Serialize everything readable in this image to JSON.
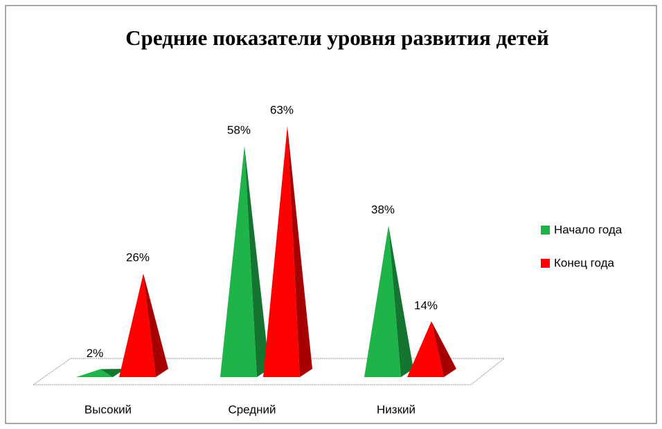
{
  "chart_data": {
    "type": "pyramid",
    "title": "Средние показатели уровня развития детей",
    "categories": [
      "Высокий",
      "Средний",
      "Низкий"
    ],
    "series": [
      {
        "name": "Начало года",
        "color": "#1fb44a",
        "values": [
          2,
          58,
          38
        ],
        "value_labels": [
          "2%",
          "58%",
          "38%"
        ]
      },
      {
        "name": "Конец года",
        "color": "#ff0000",
        "values": [
          26,
          63,
          14
        ],
        "value_labels": [
          "26%",
          "63%",
          "14%"
        ]
      }
    ],
    "legend": "right"
  }
}
